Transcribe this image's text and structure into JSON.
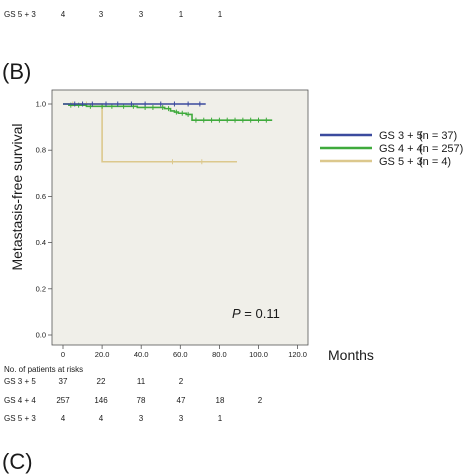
{
  "top_row": {
    "label": "GS 5 + 3",
    "values": [
      "4",
      "3",
      "3",
      "1",
      "1"
    ]
  },
  "panel_b_label": "(B)",
  "panel_c_label": "(C)",
  "chart_data": {
    "type": "line",
    "subtype": "kaplan-meier",
    "xlabel": "Months",
    "ylabel": "Metastasis-free survival",
    "xlim": [
      0,
      130
    ],
    "ylim": [
      0,
      1.05
    ],
    "xticks": [
      "0",
      "20.0",
      "40.0",
      "60.0",
      "80.0",
      "100.0",
      "120.0"
    ],
    "xtick_values": [
      0,
      20,
      40,
      60,
      80,
      100,
      120
    ],
    "yticks": [
      "0.0",
      "0.2",
      "0.4",
      "0.6",
      "0.8",
      "1.0"
    ],
    "ytick_values": [
      0,
      0.2,
      0.4,
      0.6,
      0.8,
      1.0
    ],
    "grid": false,
    "legend_position": "right",
    "background": "#f0efe9",
    "annotation": {
      "prefix": "P",
      "text": " = 0.11"
    },
    "series": [
      {
        "name": "GS 3 + 5",
        "n_label": "(n = 37)",
        "color": "#3b4a9e",
        "steps": [
          [
            0,
            1.0
          ],
          [
            73,
            1.0
          ]
        ],
        "censor_x": [
          6,
          10,
          15,
          22,
          28,
          35,
          42,
          50,
          57,
          64,
          70
        ]
      },
      {
        "name": "GS 4 + 4",
        "n_label": "(n = 257)",
        "color": "#3faa3c",
        "steps": [
          [
            0,
            1.0
          ],
          [
            3,
            0.995
          ],
          [
            12,
            0.99
          ],
          [
            27,
            0.99
          ],
          [
            38,
            0.985
          ],
          [
            48,
            0.985
          ],
          [
            52,
            0.98
          ],
          [
            55,
            0.97
          ],
          [
            57,
            0.965
          ],
          [
            59,
            0.96
          ],
          [
            63,
            0.955
          ],
          [
            66,
            0.93
          ],
          [
            107,
            0.93
          ]
        ],
        "censor_x": [
          4,
          8,
          14,
          20,
          25,
          31,
          36,
          42,
          46,
          51,
          54,
          58,
          61,
          64,
          68,
          72,
          76,
          80,
          84,
          88,
          92,
          96,
          100,
          104
        ]
      },
      {
        "name": "GS 5 + 3",
        "n_label": "(n = 4)",
        "color": "#dcc88d",
        "steps": [
          [
            0,
            1.0
          ],
          [
            20,
            0.75
          ],
          [
            89,
            0.75
          ]
        ],
        "censor_x": [
          5,
          12,
          56,
          71
        ]
      }
    ]
  },
  "risk_table": {
    "title": "No. of patients at risks",
    "rows": [
      {
        "label": "GS 3 + 5",
        "values": [
          "37",
          "22",
          "11",
          "2"
        ]
      },
      {
        "label": "GS 4 + 4",
        "values": [
          "257",
          "146",
          "78",
          "47",
          "18",
          "2"
        ]
      },
      {
        "label": "GS 5 + 3",
        "values": [
          "4",
          "4",
          "3",
          "3",
          "1"
        ]
      }
    ]
  }
}
